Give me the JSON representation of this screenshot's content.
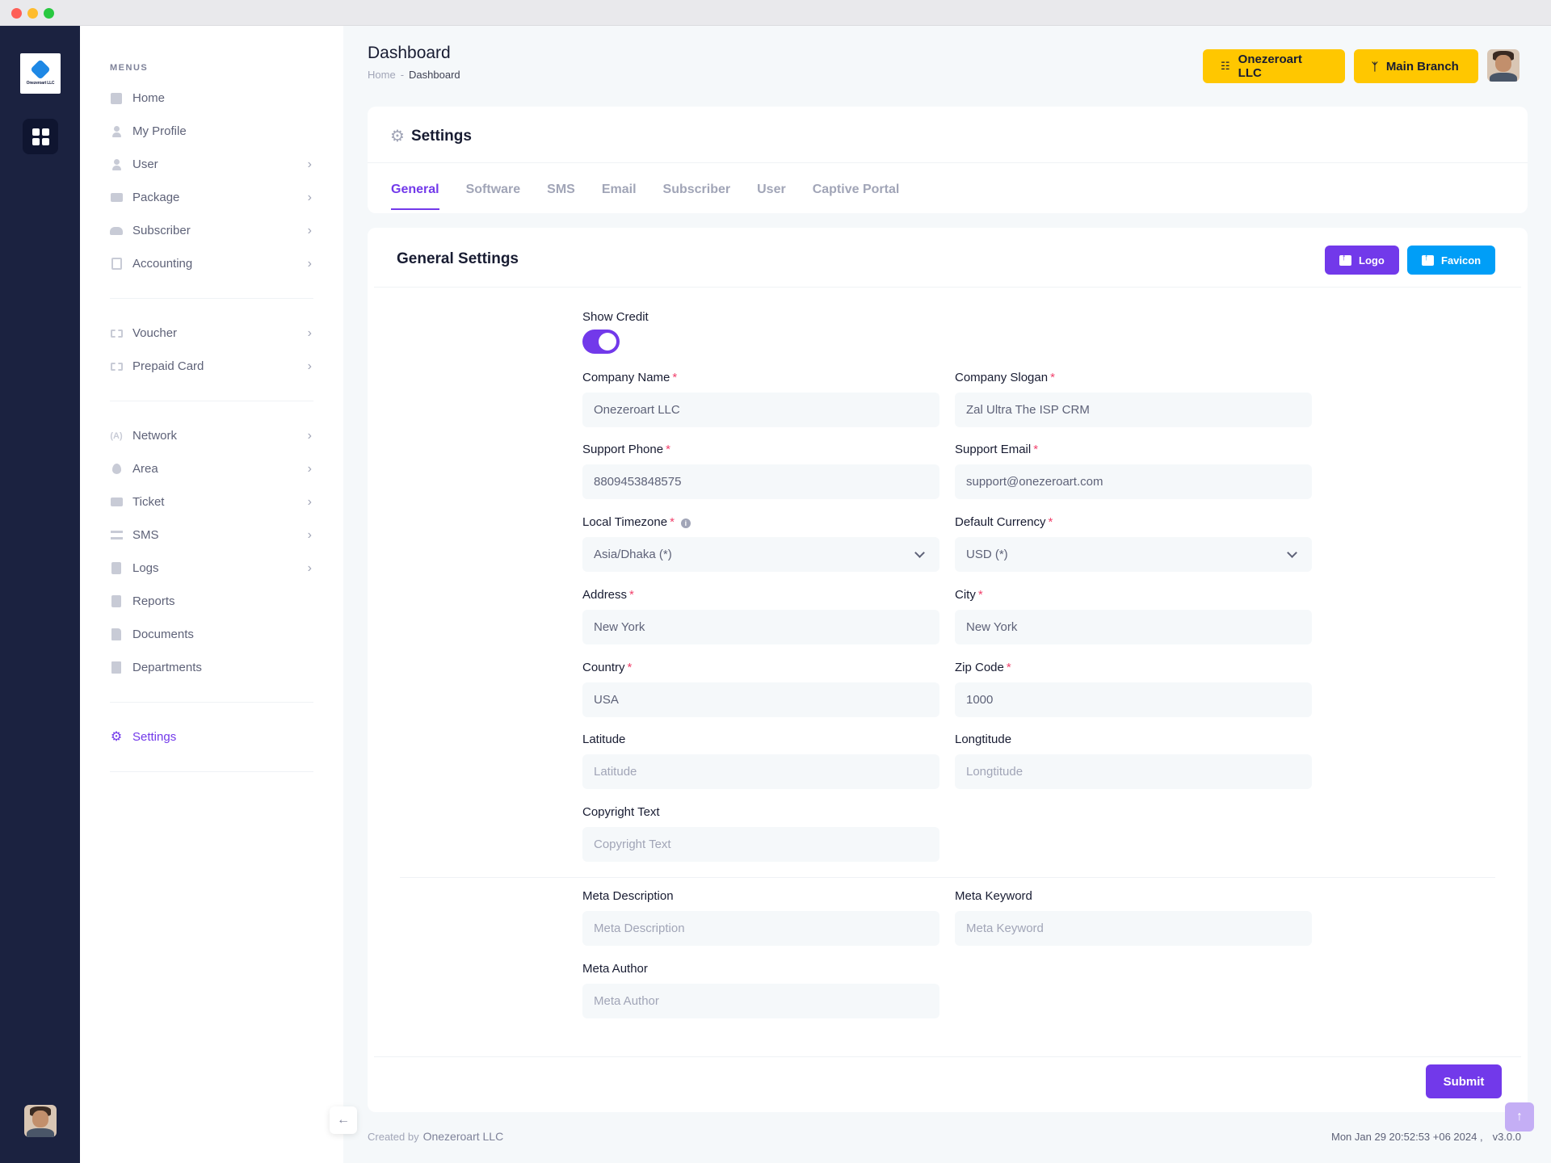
{
  "rail": {
    "logo_text": "Onezeroart LLC"
  },
  "sidebar": {
    "menus_title": "MENUS",
    "groups": [
      [
        {
          "label": "Home",
          "icon": "home-icon",
          "chevron": false
        },
        {
          "label": "My Profile",
          "icon": "person-icon",
          "chevron": false
        },
        {
          "label": "User",
          "icon": "person-icon",
          "chevron": true
        },
        {
          "label": "Package",
          "icon": "box-icon",
          "chevron": true
        },
        {
          "label": "Subscriber",
          "icon": "group-icon",
          "chevron": true
        },
        {
          "label": "Accounting",
          "icon": "calculator-icon",
          "chevron": true
        }
      ],
      [
        {
          "label": "Voucher",
          "icon": "ticket-icon",
          "chevron": true
        },
        {
          "label": "Prepaid Card",
          "icon": "ticket-icon",
          "chevron": true
        }
      ],
      [
        {
          "label": "Network",
          "icon": "antenna-icon",
          "chevron": true
        },
        {
          "label": "Area",
          "icon": "pin-icon",
          "chevron": true
        },
        {
          "label": "Ticket",
          "icon": "mail-icon",
          "chevron": true
        },
        {
          "label": "SMS",
          "icon": "message-icon",
          "chevron": true
        },
        {
          "label": "Logs",
          "icon": "book-icon",
          "chevron": true
        },
        {
          "label": "Reports",
          "icon": "book-icon",
          "chevron": false
        },
        {
          "label": "Documents",
          "icon": "document-icon",
          "chevron": false
        },
        {
          "label": "Departments",
          "icon": "building-icon",
          "chevron": false
        }
      ],
      [
        {
          "label": "Settings",
          "icon": "gears-icon",
          "chevron": false,
          "active": true
        }
      ]
    ]
  },
  "header": {
    "title": "Dashboard",
    "breadcrumb": {
      "home": "Home",
      "separator": "-",
      "current": "Dashboard"
    },
    "company_button": "Onezeroart LLC",
    "branch_button": "Main Branch"
  },
  "settings_card": {
    "title": "Settings",
    "tabs": [
      "General",
      "Software",
      "SMS",
      "Email",
      "Subscriber",
      "User",
      "Captive Portal"
    ],
    "active_tab": "General"
  },
  "form": {
    "title": "General Settings",
    "logo_button": "Logo",
    "favicon_button": "Favicon",
    "show_credit": {
      "label": "Show Credit",
      "on": true
    },
    "company_name": {
      "label": "Company Name",
      "value": "Onezeroart LLC"
    },
    "company_slogan": {
      "label": "Company Slogan",
      "value": "Zal Ultra The ISP CRM"
    },
    "support_phone": {
      "label": "Support Phone",
      "value": "8809453848575"
    },
    "support_email": {
      "label": "Support Email",
      "value": "support@onezeroart.com"
    },
    "local_timezone": {
      "label": "Local Timezone",
      "value": "Asia/Dhaka (*)"
    },
    "default_currency": {
      "label": "Default Currency",
      "value": "USD (*)"
    },
    "address": {
      "label": "Address",
      "value": "New York"
    },
    "city": {
      "label": "City",
      "value": "New York"
    },
    "country": {
      "label": "Country",
      "value": "USA"
    },
    "zip_code": {
      "label": "Zip Code",
      "value": "1000"
    },
    "latitude": {
      "label": "Latitude",
      "placeholder": "Latitude"
    },
    "longtitude": {
      "label": "Longtitude",
      "placeholder": "Longtitude"
    },
    "copyright_text": {
      "label": "Copyright Text",
      "placeholder": "Copyright Text"
    },
    "meta_description": {
      "label": "Meta Description",
      "placeholder": "Meta Description"
    },
    "meta_keyword": {
      "label": "Meta Keyword",
      "placeholder": "Meta Keyword"
    },
    "meta_author": {
      "label": "Meta Author",
      "placeholder": "Meta Author"
    },
    "required_mark": "*",
    "submit": "Submit"
  },
  "footer": {
    "created_by": "Created by",
    "company": "Onezeroart LLC",
    "datetime": "Mon Jan 29 20:52:53 +06 2024 ,",
    "version": "v3.0.0"
  },
  "colors": {
    "accent": "#7239ea",
    "info": "#009ef7",
    "warning": "#ffc700",
    "rail": "#1b2240",
    "required": "#f1416c"
  }
}
